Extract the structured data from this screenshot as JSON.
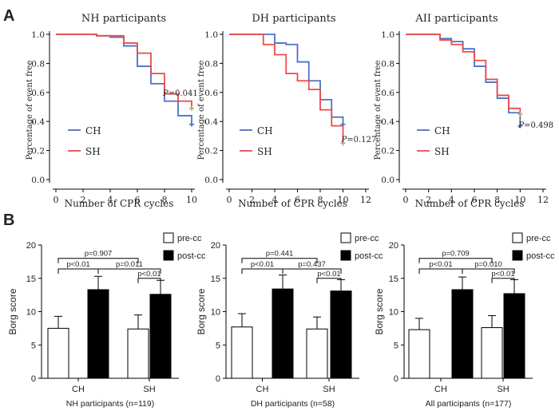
{
  "panel_labels": {
    "a": "A",
    "b": "B"
  },
  "colors": {
    "ch": "#4a72c6",
    "sh": "#ef4a4a",
    "censor": "#b9a868",
    "bar_post": "#000000",
    "bar_pre": "#ffffff"
  },
  "chart_data": [
    {
      "type": "line",
      "step": true,
      "title": "NH participants",
      "xlabel": "Number of CPR cycles",
      "ylabel": "Percentage of event free",
      "xlim": [
        0,
        10
      ],
      "ylim": [
        0,
        1
      ],
      "xticks": [
        "0",
        "2",
        "4",
        "6",
        "8",
        "10"
      ],
      "yticks": [
        "0.0",
        "0.2",
        "0.4",
        "0.6",
        "0.8",
        "1.0"
      ],
      "annotation": {
        "p_label": "P",
        "p_value": "=0.041",
        "x": 8,
        "y": 0.6
      },
      "series": [
        {
          "name": "CH",
          "x": [
            0,
            3,
            4,
            5,
            6,
            7,
            8,
            9,
            10
          ],
          "y": [
            1.0,
            0.99,
            0.98,
            0.92,
            0.78,
            0.66,
            0.54,
            0.44,
            0.38
          ]
        },
        {
          "name": "SH",
          "x": [
            0,
            3,
            4,
            5,
            6,
            7,
            8,
            9,
            10
          ],
          "y": [
            1.0,
            0.99,
            0.99,
            0.94,
            0.87,
            0.73,
            0.59,
            0.54,
            0.49
          ]
        }
      ]
    },
    {
      "type": "line",
      "step": true,
      "title": "DH participants",
      "xlabel": "Number of CPR cycles",
      "ylabel": "Percentage of event free",
      "xlim": [
        0,
        12
      ],
      "ylim": [
        0,
        1
      ],
      "xticks": [
        "0",
        "2",
        "4",
        "6",
        "8",
        "10",
        "12"
      ],
      "yticks": [
        "0.0",
        "0.2",
        "0.4",
        "0.6",
        "0.8",
        "1.0"
      ],
      "annotation": {
        "p_label": "P",
        "p_value": "=0.127",
        "x": 10,
        "y": 0.28
      },
      "series": [
        {
          "name": "CH",
          "x": [
            0,
            3,
            4,
            5,
            6,
            7,
            8,
            9,
            10
          ],
          "y": [
            1.0,
            1.0,
            0.94,
            0.93,
            0.81,
            0.68,
            0.55,
            0.43,
            0.38
          ]
        },
        {
          "name": "SH",
          "x": [
            0,
            3,
            4,
            5,
            6,
            7,
            8,
            9,
            10
          ],
          "y": [
            1.0,
            0.93,
            0.86,
            0.73,
            0.68,
            0.62,
            0.48,
            0.37,
            0.25
          ]
        }
      ]
    },
    {
      "type": "line",
      "step": true,
      "title": "AII participants",
      "xlabel": "Number of CPR cycles",
      "ylabel": "Percentage of event free",
      "xlim": [
        0,
        12
      ],
      "ylim": [
        0,
        1
      ],
      "xticks": [
        "0",
        "2",
        "4",
        "6",
        "8",
        "10",
        "12"
      ],
      "yticks": [
        "0.0",
        "0.2",
        "0.4",
        "0.6",
        "0.8",
        "1.0"
      ],
      "annotation": {
        "p_label": "P",
        "p_value": "=0.498",
        "x": 10,
        "y": 0.38
      },
      "series": [
        {
          "name": "CH",
          "x": [
            0,
            3,
            4,
            5,
            6,
            7,
            8,
            9,
            10
          ],
          "y": [
            1.0,
            0.97,
            0.95,
            0.9,
            0.78,
            0.67,
            0.56,
            0.46,
            0.37
          ]
        },
        {
          "name": "SH",
          "x": [
            0,
            3,
            4,
            5,
            6,
            7,
            8,
            9,
            10
          ],
          "y": [
            1.0,
            0.96,
            0.93,
            0.88,
            0.82,
            0.69,
            0.58,
            0.49,
            0.45
          ]
        }
      ]
    },
    {
      "type": "bar",
      "xlabel": "NH participants (n=119)",
      "ylabel": "Borg score",
      "ylim": [
        0,
        20
      ],
      "yticks": [
        "0",
        "5",
        "10",
        "15",
        "20"
      ],
      "categories": [
        "CH",
        "SH"
      ],
      "series": [
        {
          "name": "pre-cc",
          "values": [
            7.5,
            7.4
          ],
          "errors": [
            1.8,
            2.1
          ]
        },
        {
          "name": "post-cc",
          "values": [
            13.3,
            12.6
          ],
          "errors": [
            2.0,
            2.1
          ]
        }
      ],
      "comparisons": [
        {
          "label": "p=0.907",
          "y": 18.0,
          "from": [
            0,
            0
          ],
          "to": [
            1,
            0
          ]
        },
        {
          "label": "p<0.01",
          "y": 16.4,
          "from": [
            0,
            0
          ],
          "to": [
            0,
            1
          ]
        },
        {
          "label": "p=0.011",
          "y": 16.4,
          "from": [
            0,
            1
          ],
          "to": [
            1,
            1
          ]
        },
        {
          "label": "p<0.01",
          "y": 15.0,
          "from": [
            1,
            0
          ],
          "to": [
            1,
            1
          ]
        }
      ]
    },
    {
      "type": "bar",
      "xlabel": "DH participants (n=58)",
      "ylabel": "Borg score",
      "ylim": [
        0,
        20
      ],
      "yticks": [
        "0",
        "5",
        "10",
        "15",
        "20"
      ],
      "categories": [
        "CH",
        "SH"
      ],
      "series": [
        {
          "name": "pre-cc",
          "values": [
            7.7,
            7.4
          ],
          "errors": [
            2.0,
            1.8
          ]
        },
        {
          "name": "post-cc",
          "values": [
            13.4,
            13.1
          ],
          "errors": [
            2.1,
            1.7
          ]
        }
      ],
      "comparisons": [
        {
          "label": "p=0.441",
          "y": 18.0,
          "from": [
            0,
            0
          ],
          "to": [
            1,
            0
          ]
        },
        {
          "label": "p<0.01",
          "y": 16.4,
          "from": [
            0,
            0
          ],
          "to": [
            0,
            1
          ]
        },
        {
          "label": "p=0.437",
          "y": 16.4,
          "from": [
            0,
            1
          ],
          "to": [
            1,
            1
          ]
        },
        {
          "label": "p<0.01",
          "y": 15.0,
          "from": [
            1,
            0
          ],
          "to": [
            1,
            1
          ]
        }
      ]
    },
    {
      "type": "bar",
      "xlabel": "All participants (n=177)",
      "ylabel": "Borg score",
      "ylim": [
        0,
        20
      ],
      "yticks": [
        "0",
        "5",
        "10",
        "15",
        "20"
      ],
      "categories": [
        "CH",
        "SH"
      ],
      "series": [
        {
          "name": "pre-cc",
          "values": [
            7.3,
            7.6
          ],
          "errors": [
            1.7,
            1.8
          ]
        },
        {
          "name": "post-cc",
          "values": [
            13.3,
            12.7
          ],
          "errors": [
            1.9,
            2.1
          ]
        }
      ],
      "comparisons": [
        {
          "label": "p=0.709",
          "y": 18.0,
          "from": [
            0,
            0
          ],
          "to": [
            1,
            0
          ]
        },
        {
          "label": "p<0.01",
          "y": 16.4,
          "from": [
            0,
            0
          ],
          "to": [
            0,
            1
          ]
        },
        {
          "label": "p=0.010",
          "y": 16.4,
          "from": [
            0,
            1
          ],
          "to": [
            1,
            1
          ]
        },
        {
          "label": "p<0.01",
          "y": 15.0,
          "from": [
            1,
            0
          ],
          "to": [
            1,
            1
          ]
        }
      ]
    }
  ]
}
